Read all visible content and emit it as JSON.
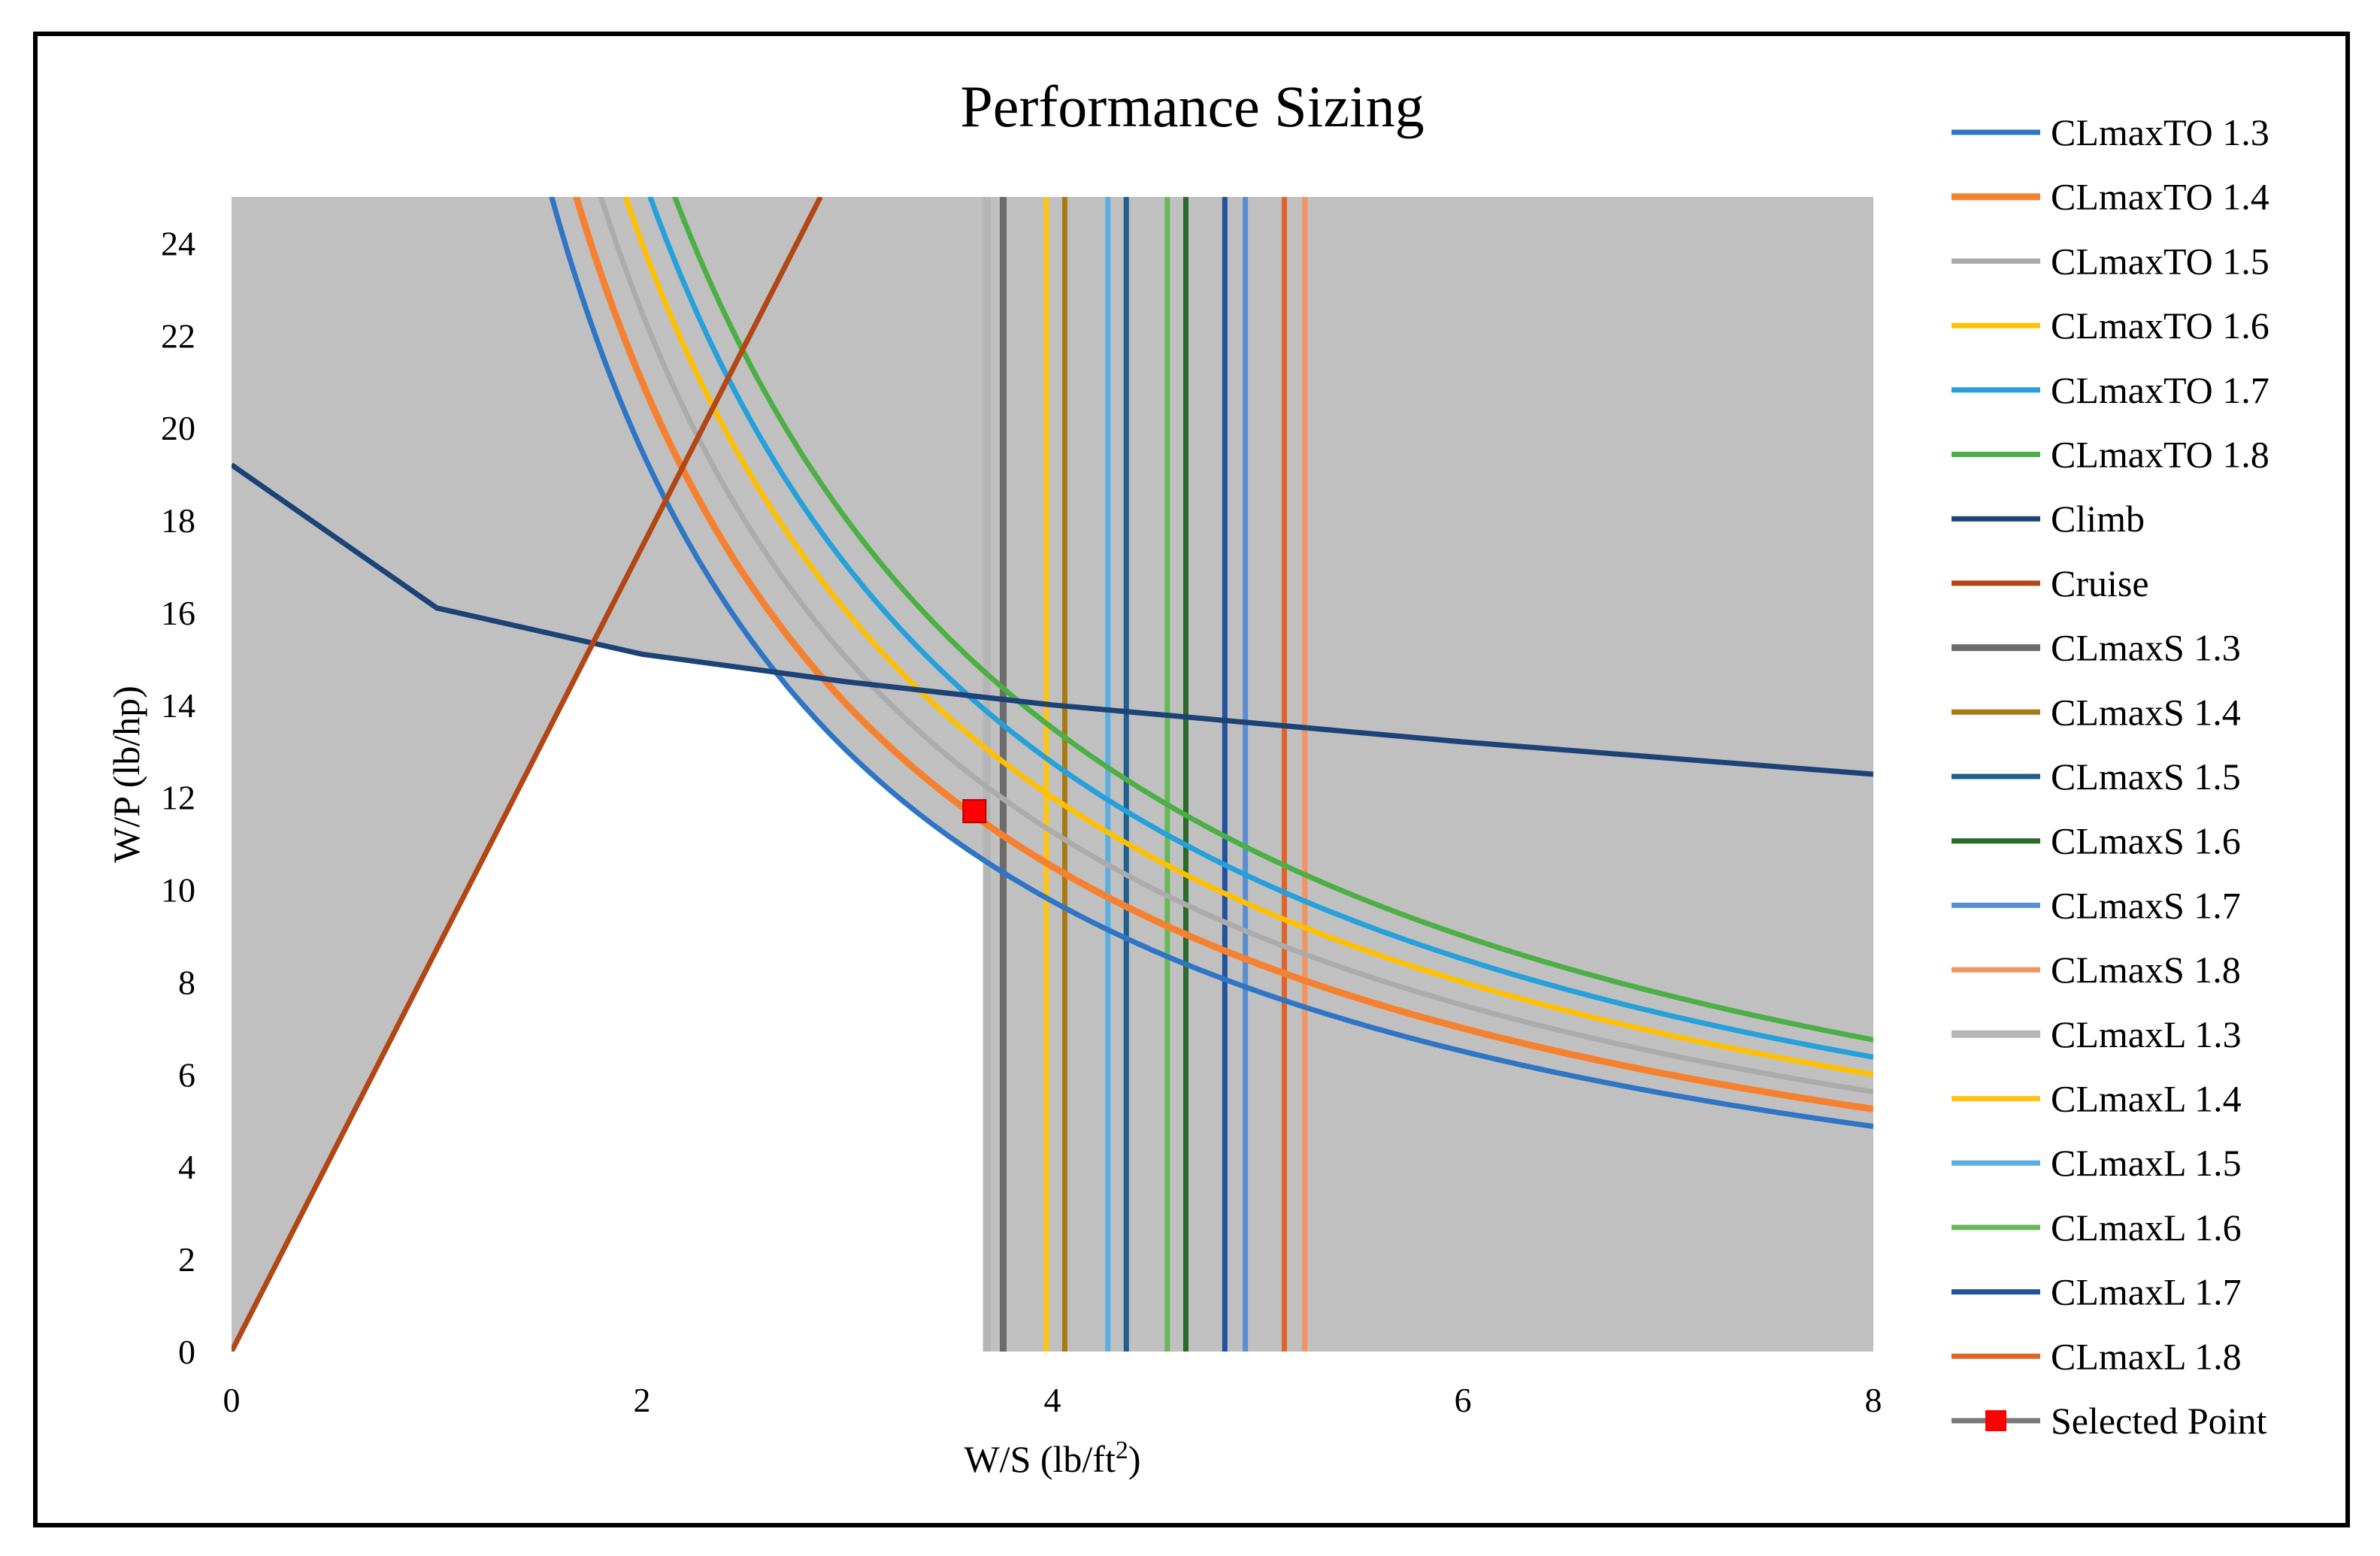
{
  "chart_data": {
    "type": "line",
    "title": "Performance Sizing",
    "xlabel": "W/S (lb/ft²)",
    "xlabel_base": "W/S (lb/ft",
    "xlabel_sup": "2",
    "xlabel_tail": ")",
    "ylabel": "W/P (lb/hp)",
    "xlim": [
      0,
      8
    ],
    "ylim": [
      0,
      25
    ],
    "x_ticks": [
      "0",
      "2",
      "4",
      "6",
      "8"
    ],
    "y_ticks": [
      "0",
      "2",
      "4",
      "6",
      "8",
      "10",
      "12",
      "14",
      "16",
      "18",
      "20",
      "22",
      "24"
    ],
    "grid": false,
    "legend_position": "right",
    "plot_background": "#c0c0c0",
    "feasible_region_color": "#ffffff",
    "series": [
      {
        "name": "CLmaxTO 1.3",
        "kind": "takeoff",
        "color": "#2e75c5",
        "k": 39.0
      },
      {
        "name": "CLmaxTO 1.4",
        "kind": "takeoff",
        "color": "#f58130",
        "k": 42.0,
        "width": 9
      },
      {
        "name": "CLmaxTO 1.5",
        "kind": "takeoff",
        "color": "#ababab",
        "k": 45.0
      },
      {
        "name": "CLmaxTO 1.6",
        "kind": "takeoff",
        "color": "#ffc000",
        "k": 48.0
      },
      {
        "name": "CLmaxTO 1.7",
        "kind": "takeoff",
        "color": "#25a0da",
        "k": 51.0
      },
      {
        "name": "CLmaxTO 1.8",
        "kind": "takeoff",
        "color": "#4caf45",
        "k": 54.0
      },
      {
        "name": "Climb",
        "kind": "line",
        "color": "#1d4276",
        "x": [
          0,
          1,
          2,
          3,
          4,
          5,
          6,
          7,
          8
        ],
        "y": [
          19.2,
          16.1,
          15.1,
          14.5,
          14.0,
          13.6,
          13.2,
          12.85,
          12.5
        ]
      },
      {
        "name": "Cruise",
        "kind": "line",
        "color": "#b24614",
        "x": [
          0,
          2.87
        ],
        "y": [
          0,
          25
        ]
      },
      {
        "name": "CLmaxS 1.3",
        "kind": "vline",
        "color": "#6c6c6c",
        "x": 3.76,
        "width": 9
      },
      {
        "name": "CLmaxS 1.4",
        "kind": "vline",
        "color": "#a87a14",
        "x": 4.06
      },
      {
        "name": "CLmaxS 1.5",
        "kind": "vline",
        "color": "#1f5f8f",
        "x": 4.36
      },
      {
        "name": "CLmaxS 1.6",
        "kind": "vline",
        "color": "#2c6a2a",
        "x": 4.65
      },
      {
        "name": "CLmaxS 1.7",
        "kind": "vline",
        "color": "#5a8ed2",
        "x": 4.94
      },
      {
        "name": "CLmaxS 1.8",
        "kind": "vline",
        "color": "#f5935e",
        "x": 5.23
      },
      {
        "name": "CLmaxL 1.3",
        "kind": "vline",
        "color": "#b5b5b5",
        "x": 3.68,
        "width": 10
      },
      {
        "name": "CLmaxL 1.4",
        "kind": "vline",
        "color": "#ffc414",
        "x": 3.97
      },
      {
        "name": "CLmaxL 1.5",
        "kind": "vline",
        "color": "#5aaee0",
        "x": 4.27
      },
      {
        "name": "CLmaxL 1.6",
        "kind": "vline",
        "color": "#68b85a",
        "x": 4.56
      },
      {
        "name": "CLmaxL 1.7",
        "kind": "vline",
        "color": "#22529e",
        "x": 4.84
      },
      {
        "name": "CLmaxL 1.8",
        "kind": "vline",
        "color": "#e0642a",
        "x": 5.13
      },
      {
        "name": "Selected Point",
        "kind": "point",
        "color": "#ff0000",
        "line_color": "#777777",
        "x": [
          3.62
        ],
        "y": [
          11.7
        ]
      }
    ]
  }
}
